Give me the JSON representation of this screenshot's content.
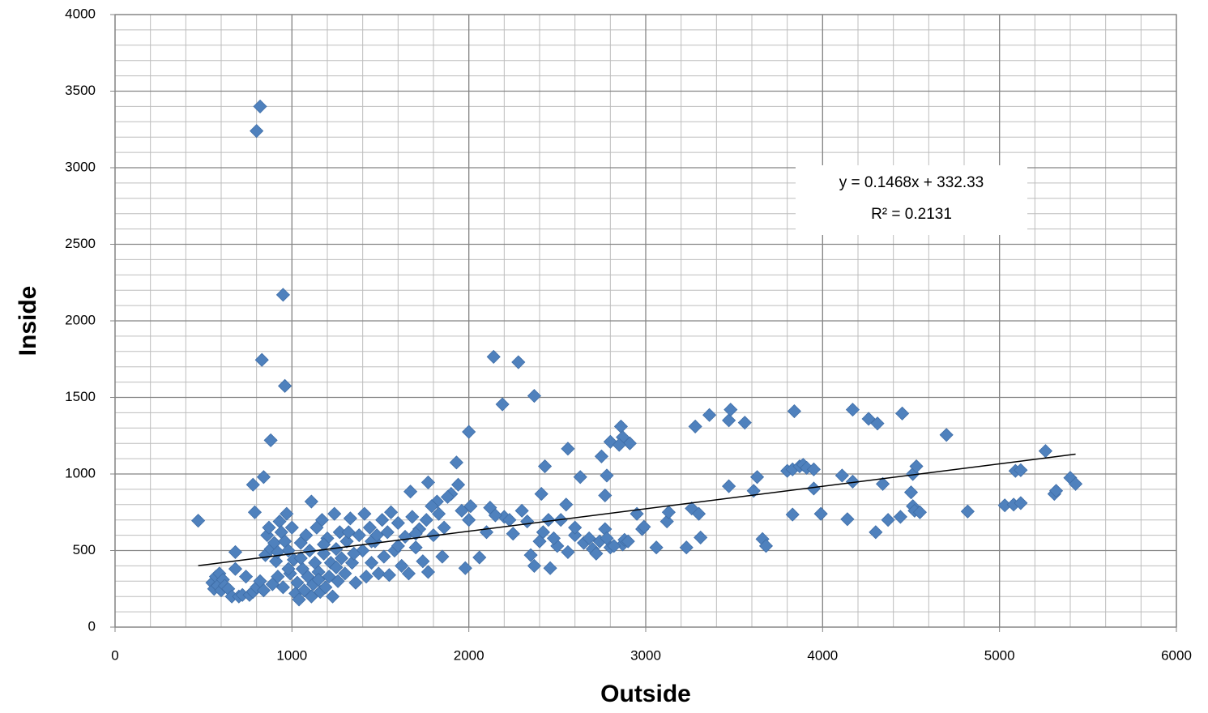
{
  "chart_data": {
    "type": "scatter",
    "x_label": "Outside",
    "y_label": "Inside",
    "xlim": [
      0,
      6000
    ],
    "xticks": [
      0,
      1000,
      2000,
      3000,
      4000,
      5000,
      6000
    ],
    "ylim": [
      0,
      4000
    ],
    "yticks": [
      0,
      500,
      1000,
      1500,
      2000,
      2500,
      3000,
      3500,
      4000
    ],
    "grid": true,
    "minor_grid": {
      "x": 200,
      "y": 100
    },
    "color": "#4f81bd",
    "trendline": {
      "slope": 0.1468,
      "intercept": 332.33,
      "equation": "y = 0.1468x + 332.33",
      "r_squared": "R² = 0.2131"
    },
    "x": [
      470,
      800,
      820,
      950,
      830,
      960,
      880,
      840,
      780,
      790,
      680,
      2140,
      2280,
      2370,
      2190,
      2000,
      1930,
      1770,
      1670,
      1110,
      2430,
      2560,
      2630,
      2770,
      2780,
      2750,
      2800,
      2860,
      2870,
      2910,
      2850,
      3280,
      3360,
      3470,
      3480,
      3560,
      3840,
      4170,
      4260,
      4310,
      4450,
      4700,
      5260,
      3470,
      3630,
      3610,
      3800,
      3830,
      3870,
      3890,
      3910,
      3950,
      3950,
      4110,
      4170,
      4340,
      4510,
      4530,
      4500,
      4510,
      4520,
      4550,
      4440,
      4370,
      4300,
      4140,
      3990,
      3830,
      3660,
      3680,
      3310,
      3230,
      3260,
      3300,
      3120,
      3130,
      3060,
      2980,
      2950,
      2990,
      4820,
      5030,
      5080,
      5120,
      5090,
      5120,
      5310,
      5320,
      5400,
      5430,
      1980,
      2060,
      2100,
      2120,
      2200,
      2250,
      2300,
      2350,
      2370,
      2400,
      2410,
      2450,
      2460,
      2500,
      2550,
      2560,
      2600,
      2650,
      2700,
      2720,
      2770,
      2800,
      2870,
      2880,
      2000,
      2010,
      1900,
      1940,
      1850,
      1820,
      2150,
      2230,
      2330,
      2420,
      2480,
      2520,
      2600,
      2680,
      2740,
      2780,
      2820,
      2900,
      550,
      560,
      570,
      580,
      590,
      600,
      610,
      620,
      640,
      660,
      680,
      700,
      720,
      740,
      760,
      780,
      800,
      820,
      840,
      850,
      860,
      870,
      880,
      890,
      900,
      910,
      920,
      930,
      940,
      950,
      960,
      970,
      980,
      990,
      1000,
      1010,
      1020,
      1030,
      1040,
      1050,
      1060,
      1070,
      1080,
      1090,
      1100,
      1110,
      1120,
      1130,
      1140,
      1150,
      1160,
      1170,
      1180,
      1190,
      1200,
      1210,
      1220,
      1230,
      1240,
      1250,
      1260,
      1270,
      1280,
      1300,
      1310,
      1330,
      1340,
      1360,
      1380,
      1400,
      1410,
      1420,
      1440,
      1450,
      1470,
      1490,
      1510,
      1520,
      1540,
      1550,
      1560,
      1580,
      1600,
      1620,
      1640,
      1660,
      1680,
      1700,
      1720,
      1740,
      1760,
      1770,
      1790,
      1800,
      1830,
      1860,
      1880,
      1960,
      1450,
      1350,
      1250,
      1150,
      1050,
      980,
      920,
      1180,
      1320,
      1480,
      1600,
      1700
    ],
    "values": [
      695,
      3240,
      3400,
      2170,
      1745,
      1575,
      1220,
      980,
      930,
      750,
      490,
      1765,
      1730,
      1510,
      1455,
      1275,
      1075,
      945,
      885,
      820,
      1050,
      1165,
      980,
      860,
      990,
      1115,
      1210,
      1310,
      1240,
      1200,
      1190,
      1310,
      1385,
      1350,
      1420,
      1335,
      1410,
      1420,
      1360,
      1330,
      1395,
      1255,
      1150,
      920,
      980,
      890,
      1020,
      1030,
      1050,
      1060,
      1040,
      1030,
      905,
      990,
      950,
      935,
      1000,
      1050,
      880,
      790,
      760,
      750,
      720,
      700,
      620,
      705,
      740,
      735,
      575,
      530,
      585,
      520,
      775,
      740,
      690,
      750,
      520,
      640,
      740,
      655,
      755,
      795,
      800,
      810,
      1020,
      1025,
      870,
      890,
      975,
      935,
      385,
      455,
      620,
      780,
      720,
      610,
      760,
      470,
      400,
      560,
      870,
      700,
      385,
      530,
      800,
      490,
      600,
      550,
      510,
      480,
      640,
      520,
      540,
      570,
      700,
      790,
      870,
      930,
      460,
      820,
      730,
      700,
      690,
      620,
      580,
      700,
      650,
      580,
      560,
      580,
      530,
      560,
      290,
      250,
      330,
      270,
      350,
      240,
      310,
      270,
      250,
      200,
      380,
      200,
      210,
      330,
      210,
      230,
      260,
      300,
      240,
      470,
      600,
      650,
      510,
      280,
      550,
      430,
      330,
      690,
      620,
      260,
      560,
      740,
      500,
      350,
      650,
      440,
      220,
      290,
      180,
      550,
      380,
      240,
      600,
      330,
      500,
      200,
      280,
      420,
      650,
      360,
      230,
      700,
      480,
      260,
      580,
      330,
      420,
      200,
      740,
      510,
      300,
      620,
      450,
      350,
      560,
      710,
      420,
      290,
      600,
      500,
      740,
      330,
      650,
      420,
      560,
      350,
      700,
      460,
      620,
      340,
      750,
      500,
      680,
      400,
      590,
      350,
      720,
      520,
      640,
      430,
      700,
      360,
      790,
      600,
      740,
      650,
      850,
      760,
      560,
      480,
      390,
      310,
      450,
      380,
      490,
      540,
      620,
      600,
      530,
      610
    ]
  }
}
